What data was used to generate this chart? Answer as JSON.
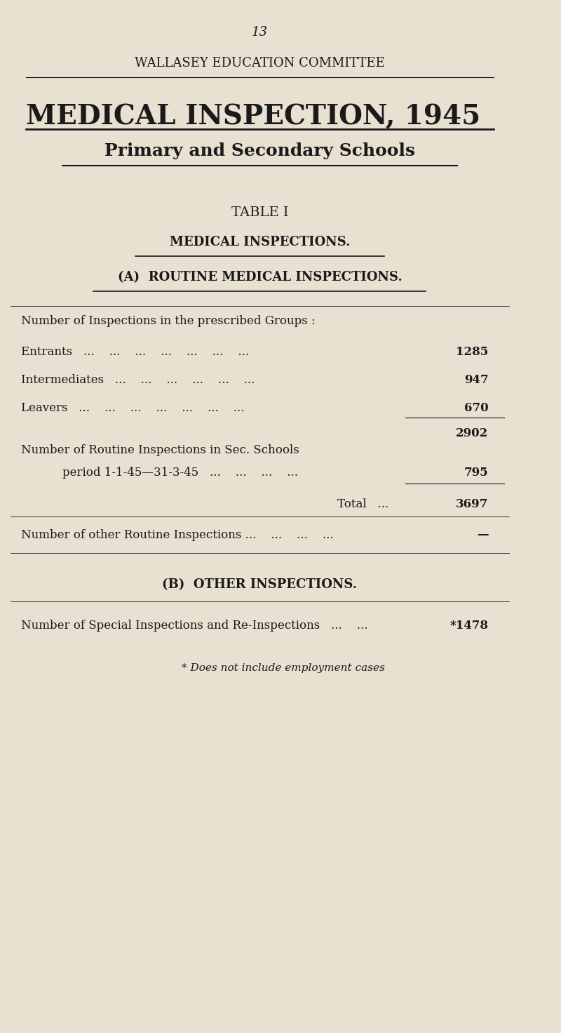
{
  "page_number": "13",
  "header": "WALLASEY EDUCATION COMMITTEE",
  "main_title": "MEDICAL INSPECTION, 1945",
  "subtitle": "Primary and Secondary Schools",
  "table_title": "TABLE I",
  "section_title": "MEDICAL INSPECTIONS.",
  "subsection_title": "(A)  ROUTINE MEDICAL INSPECTIONS.",
  "groups_label": "Number of Inspections in the prescribed Groups :",
  "rows": [
    {
      "label": "Entrants   ...    ...    ...    ...    ...    ...    ...",
      "value": "1285"
    },
    {
      "label": "Intermediates   ...    ...    ...    ...    ...    ...",
      "value": "947"
    },
    {
      "label": "Leavers   ...    ...    ...    ...    ...    ...    ...",
      "value": "670"
    }
  ],
  "subtotal": "2902",
  "routine_sec_label": "Number of Routine Inspections in Sec. Schools",
  "routine_sec_period": "period 1-1-45—31-3-45   ...    ...    ...    ...",
  "routine_sec_value": "795",
  "total_label": "Total   ...",
  "total_value": "3697",
  "other_routine_label": "Number of other Routine Inspections ...    ...    ...    ...",
  "other_routine_value": "—",
  "section_b_title": "(B)  OTHER INSPECTIONS.",
  "special_label": "Number of Special Inspections and Re-Inspections   ...    ...",
  "special_value": "*1478",
  "footnote": "* Does not include employment cases",
  "bg_color": "#e8e0d0",
  "text_color": "#1a1a1a"
}
